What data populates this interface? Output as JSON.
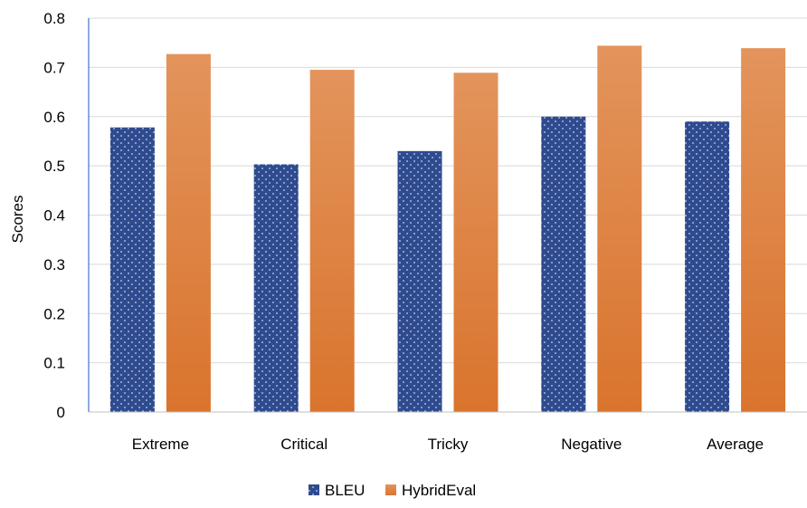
{
  "chart_data": {
    "type": "bar",
    "title": "",
    "xlabel": "",
    "ylabel": "Scores",
    "ylim": [
      0,
      0.8
    ],
    "yticks": [
      "0",
      "0.1",
      "0.2",
      "0.3",
      "0.4",
      "0.5",
      "0.6",
      "0.7",
      "0.8"
    ],
    "categories": [
      "Extreme",
      "Critical",
      "Tricky",
      "Negative",
      "Average"
    ],
    "series": [
      {
        "name": "BLEU",
        "values": [
          0.578,
          0.503,
          0.53,
          0.6,
          0.59
        ],
        "color": "#2f4b8f",
        "pattern": "dotted"
      },
      {
        "name": "HybridEval",
        "values": [
          0.727,
          0.695,
          0.689,
          0.744,
          0.739
        ],
        "color": "#e8863e",
        "pattern": "gradient"
      }
    ],
    "grid": true,
    "legend_position": "bottom-center"
  }
}
